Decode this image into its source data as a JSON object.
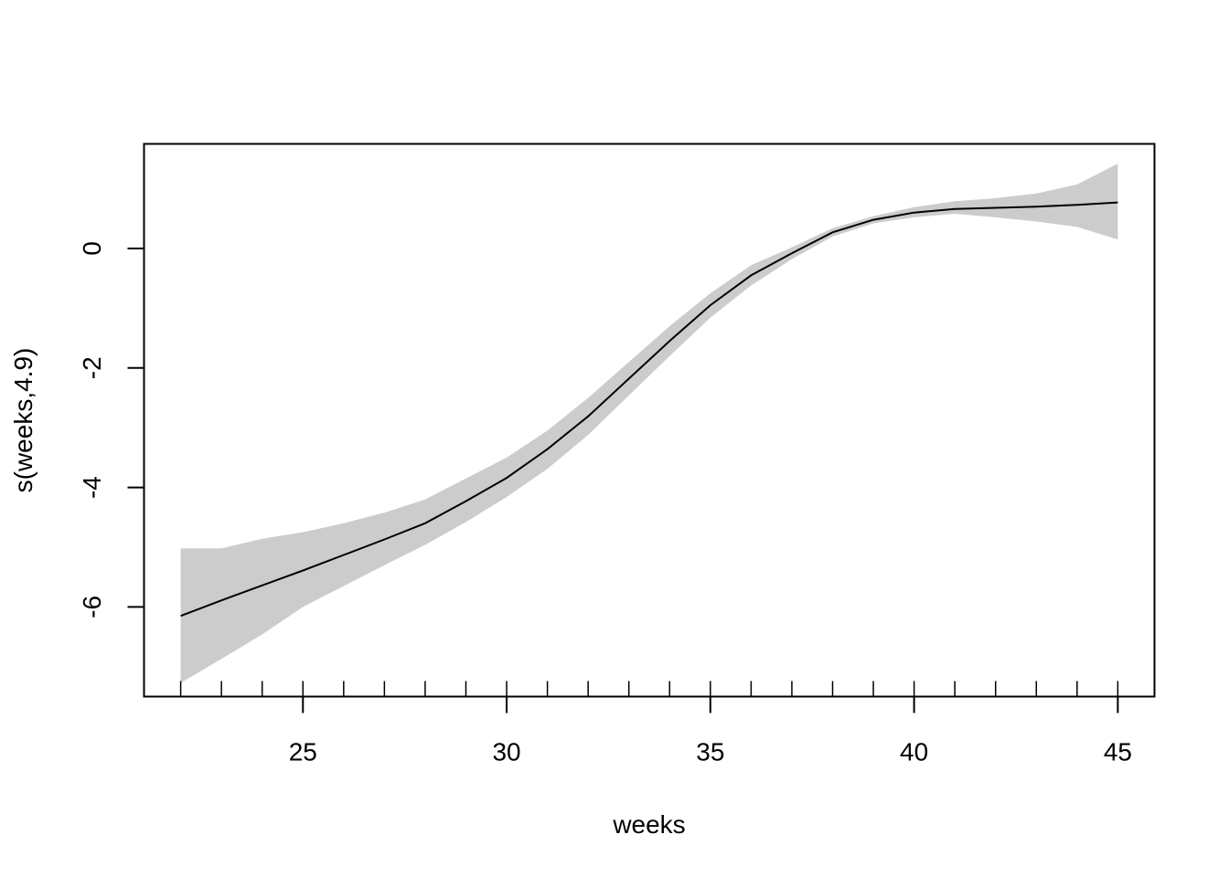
{
  "chart_data": {
    "type": "area",
    "title": "",
    "xlabel": "weeks",
    "ylabel": "s(weeks,4.9)",
    "xlim": [
      21.1,
      45.9
    ],
    "ylim": [
      -7.5,
      1.75
    ],
    "xticks": [
      25,
      30,
      35,
      40,
      45
    ],
    "yticks": [
      -6,
      -4,
      -2,
      0
    ],
    "xtick_labels": [
      "25",
      "30",
      "35",
      "40",
      "45"
    ],
    "ytick_labels": [
      "-6",
      "-4",
      "-2",
      "0"
    ],
    "grid": false,
    "legend": "none",
    "series": [
      {
        "kind": "line",
        "color": "#000000",
        "x": [
          22,
          23,
          24,
          25,
          26,
          27,
          28,
          29,
          30,
          31,
          32,
          33,
          34,
          35,
          36,
          37,
          38,
          39,
          40,
          41,
          42,
          43,
          44,
          45
        ],
        "y": [
          -6.15,
          -5.89,
          -5.64,
          -5.39,
          -5.13,
          -4.87,
          -4.6,
          -4.23,
          -3.84,
          -3.36,
          -2.81,
          -2.18,
          -1.55,
          -0.95,
          -0.45,
          -0.08,
          0.27,
          0.48,
          0.6,
          0.66,
          0.68,
          0.7,
          0.73,
          0.77
        ]
      },
      {
        "kind": "band",
        "color": "#cccccc",
        "x": [
          22,
          23,
          24,
          25,
          26,
          27,
          28,
          29,
          30,
          31,
          32,
          33,
          34,
          35,
          36,
          37,
          38,
          39,
          40,
          41,
          42,
          43,
          44,
          45
        ],
        "lower": [
          -7.27,
          -6.87,
          -6.46,
          -6.0,
          -5.65,
          -5.3,
          -4.96,
          -4.58,
          -4.16,
          -3.69,
          -3.12,
          -2.46,
          -1.8,
          -1.16,
          -0.62,
          -0.18,
          0.2,
          0.42,
          0.52,
          0.58,
          0.52,
          0.45,
          0.36,
          0.15
        ]
      }
    ],
    "band_upper": [
      -5.02,
      -5.02,
      -4.86,
      -4.75,
      -4.6,
      -4.42,
      -4.2,
      -3.85,
      -3.5,
      -3.05,
      -2.5,
      -1.9,
      -1.3,
      -0.75,
      -0.28,
      0.02,
      0.34,
      0.54,
      0.69,
      0.79,
      0.84,
      0.92,
      1.07,
      1.42
    ],
    "rug_x": [
      22,
      23,
      24,
      25,
      26,
      27,
      28,
      29,
      30,
      31,
      32,
      33,
      34,
      35,
      36,
      37,
      38,
      39,
      40,
      41,
      42,
      43,
      44,
      45
    ]
  }
}
